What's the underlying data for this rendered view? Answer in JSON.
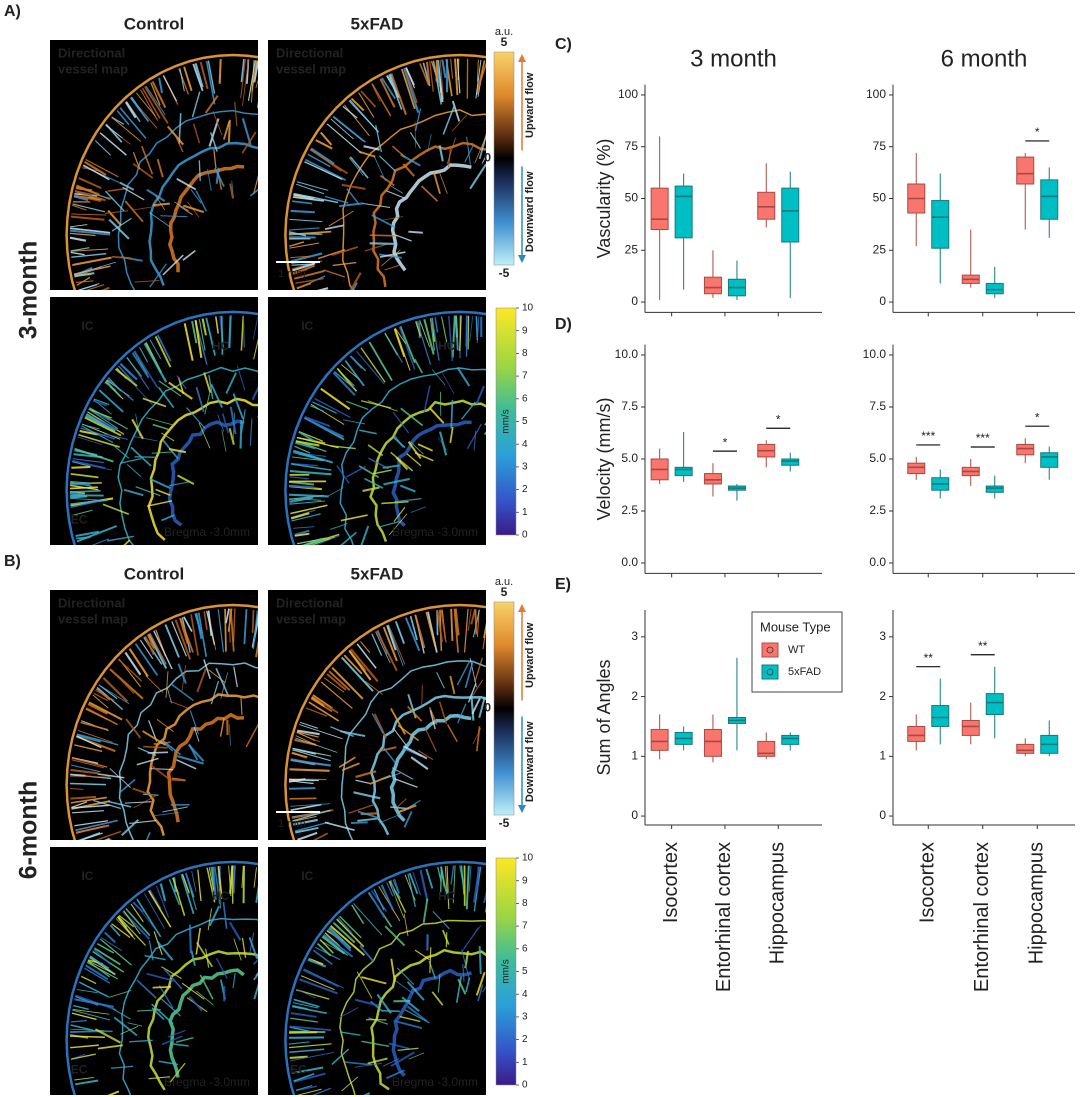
{
  "panel_a": {
    "label": "A)",
    "row_label": "3-month",
    "columns": [
      "Control",
      "5xFAD"
    ],
    "flow_images": [
      {
        "title": [
          "Directional",
          "vessel map"
        ]
      },
      {
        "title": [
          "Directional",
          "vessel map"
        ],
        "scale_bar": "1 mm"
      }
    ],
    "speed_images": [
      {
        "regions": [
          "IC",
          "HC",
          "EC"
        ],
        "bregma": "Bregma -3.0mm"
      },
      {
        "regions": [
          "IC",
          "HC"
        ],
        "bregma": "Bregma -3.0mm"
      }
    ],
    "flow_colorbar": {
      "unit": "a.u.",
      "lim": [
        -5,
        5
      ],
      "ticks": [
        5,
        0,
        -5
      ],
      "upper_label": "Upward flow",
      "lower_label": "Downward flow"
    },
    "speed_colorbar": {
      "unit": "mm/s",
      "lim": [
        0,
        10
      ],
      "ticks": [
        0,
        1,
        2,
        3,
        4,
        5,
        6,
        7,
        8,
        9,
        10
      ]
    }
  },
  "panel_b": {
    "label": "B)",
    "row_label": "6-month",
    "columns": [
      "Control",
      "5xFAD"
    ],
    "flow_images": [
      {
        "title": [
          "Directional",
          "vessel map"
        ]
      },
      {
        "title": [
          "Directional",
          "vessel map"
        ],
        "scale_bar": "1 mm"
      }
    ],
    "speed_images": [
      {
        "regions": [
          "IC",
          "HC",
          "EC"
        ],
        "bregma": "Bregma -3.0mm"
      },
      {
        "regions": [
          "IC",
          "HC",
          "EC"
        ],
        "bregma": "Bregma -3.0mm"
      }
    ],
    "flow_colorbar": {
      "unit": "a.u.",
      "lim": [
        -5,
        5
      ],
      "ticks": [
        5,
        0,
        -5
      ],
      "upper_label": "Upward flow",
      "lower_label": "Downward flow"
    },
    "speed_colorbar": {
      "unit": "mm/s",
      "lim": [
        0,
        10
      ],
      "ticks": [
        0,
        1,
        2,
        3,
        4,
        5,
        6,
        7,
        8,
        9,
        10
      ]
    }
  },
  "charts": {
    "type": "box",
    "columns": [
      "3 month",
      "6 month"
    ],
    "categories": [
      "Isocortex",
      "Entorhinal cortex",
      "Hippocampus"
    ],
    "legend_title": "Mouse Type",
    "series": [
      {
        "name": "WT",
        "color": "#f8766d"
      },
      {
        "name": "5xFAD",
        "color": "#00bfc4"
      }
    ],
    "rows": [
      {
        "label": "C)",
        "y_label": "Vascularity (%)",
        "ylim": [
          -5,
          105
        ],
        "yticks": [
          0,
          25,
          50,
          75,
          100
        ],
        "panels": [
          {
            "boxes": [
              [
                {
                  "min": 1,
                  "q1": 35,
                  "median": 40,
                  "q3": 55,
                  "max": 80
                },
                {
                  "min": 6,
                  "q1": 31,
                  "median": 51,
                  "q3": 56,
                  "max": 62
                }
              ],
              [
                {
                  "min": 2,
                  "q1": 4,
                  "median": 7,
                  "q3": 12,
                  "max": 25
                },
                {
                  "min": 1,
                  "q1": 3,
                  "median": 7,
                  "q3": 11,
                  "max": 20
                }
              ],
              [
                {
                  "min": 36,
                  "q1": 40,
                  "median": 46,
                  "q3": 53,
                  "max": 67
                },
                {
                  "min": 2,
                  "q1": 29,
                  "median": 44,
                  "q3": 55,
                  "max": 63
                }
              ]
            ],
            "significance": [
              null,
              null,
              null
            ]
          },
          {
            "boxes": [
              [
                {
                  "min": 27,
                  "q1": 43,
                  "median": 50,
                  "q3": 57,
                  "max": 72
                },
                {
                  "min": 9,
                  "q1": 26,
                  "median": 41,
                  "q3": 49,
                  "max": 62
                }
              ],
              [
                {
                  "min": 7,
                  "q1": 9,
                  "median": 11,
                  "q3": 13,
                  "max": 35
                },
                {
                  "min": 2,
                  "q1": 4,
                  "median": 6,
                  "q3": 9,
                  "max": 17
                }
              ],
              [
                {
                  "min": 35,
                  "q1": 57,
                  "median": 62,
                  "q3": 70,
                  "max": 72
                },
                {
                  "min": 31,
                  "q1": 40,
                  "median": 51,
                  "q3": 59,
                  "max": 65
                }
              ]
            ],
            "significance": [
              null,
              null,
              "*"
            ]
          }
        ]
      },
      {
        "label": "D)",
        "y_label": "Velocity (mm/s)",
        "ylim": [
          -0.5,
          10.5
        ],
        "yticks": [
          {
            "value": 0,
            "label": "0.0"
          },
          2.5,
          {
            "value": 5,
            "label": "5.0"
          },
          7.5,
          {
            "value": 10,
            "label": "10.0"
          }
        ],
        "panels": [
          {
            "boxes": [
              [
                {
                  "min": 3.8,
                  "q1": 4.0,
                  "median": 4.5,
                  "q3": 5.0,
                  "max": 5.5
                },
                {
                  "min": 3.9,
                  "q1": 4.2,
                  "median": 4.5,
                  "q3": 4.6,
                  "max": 6.3
                }
              ],
              [
                {
                  "min": 3.2,
                  "q1": 3.8,
                  "median": 4.0,
                  "q3": 4.3,
                  "max": 4.8
                },
                {
                  "min": 3.0,
                  "q1": 3.5,
                  "median": 3.6,
                  "q3": 3.7,
                  "max": 3.8
                }
              ],
              [
                {
                  "min": 4.6,
                  "q1": 5.1,
                  "median": 5.4,
                  "q3": 5.7,
                  "max": 5.9
                },
                {
                  "min": 4.4,
                  "q1": 4.7,
                  "median": 4.9,
                  "q3": 5.0,
                  "max": 5.3
                }
              ]
            ],
            "significance": [
              null,
              "*",
              "*"
            ]
          },
          {
            "boxes": [
              [
                {
                  "min": 4.0,
                  "q1": 4.3,
                  "median": 4.6,
                  "q3": 4.8,
                  "max": 5.1
                },
                {
                  "min": 3.1,
                  "q1": 3.5,
                  "median": 3.8,
                  "q3": 4.1,
                  "max": 4.5
                }
              ],
              [
                {
                  "min": 3.7,
                  "q1": 4.2,
                  "median": 4.4,
                  "q3": 4.6,
                  "max": 5.0
                },
                {
                  "min": 3.1,
                  "q1": 3.4,
                  "median": 3.6,
                  "q3": 3.7,
                  "max": 4.2
                }
              ],
              [
                {
                  "min": 4.8,
                  "q1": 5.2,
                  "median": 5.5,
                  "q3": 5.7,
                  "max": 6.0
                },
                {
                  "min": 4.0,
                  "q1": 4.6,
                  "median": 5.1,
                  "q3": 5.3,
                  "max": 5.6
                }
              ]
            ],
            "significance": [
              "***",
              "***",
              "*"
            ]
          }
        ]
      },
      {
        "label": "E)",
        "y_label": "Sum of Angles",
        "ylim": [
          -0.15,
          3.45
        ],
        "yticks": [
          0,
          1,
          2,
          3
        ],
        "panels": [
          {
            "boxes": [
              [
                {
                  "min": 0.95,
                  "q1": 1.1,
                  "median": 1.25,
                  "q3": 1.45,
                  "max": 1.7
                },
                {
                  "min": 1.1,
                  "q1": 1.2,
                  "median": 1.3,
                  "q3": 1.4,
                  "max": 1.5
                }
              ],
              [
                {
                  "min": 0.9,
                  "q1": 1.0,
                  "median": 1.25,
                  "q3": 1.45,
                  "max": 1.7
                },
                {
                  "min": 1.1,
                  "q1": 1.55,
                  "median": 1.6,
                  "q3": 1.65,
                  "max": 2.65
                }
              ],
              [
                {
                  "min": 0.95,
                  "q1": 1.0,
                  "median": 1.05,
                  "q3": 1.25,
                  "max": 1.4
                },
                {
                  "min": 1.1,
                  "q1": 1.2,
                  "median": 1.3,
                  "q3": 1.35,
                  "max": 1.4
                }
              ]
            ],
            "significance": [
              null,
              null,
              null
            ]
          },
          {
            "boxes": [
              [
                {
                  "min": 1.1,
                  "q1": 1.25,
                  "median": 1.35,
                  "q3": 1.5,
                  "max": 1.7
                },
                {
                  "min": 1.2,
                  "q1": 1.5,
                  "median": 1.65,
                  "q3": 1.85,
                  "max": 2.3
                }
              ],
              [
                {
                  "min": 1.2,
                  "q1": 1.35,
                  "median": 1.5,
                  "q3": 1.6,
                  "max": 1.9
                },
                {
                  "min": 1.3,
                  "q1": 1.7,
                  "median": 1.9,
                  "q3": 2.05,
                  "max": 2.5
                }
              ],
              [
                {
                  "min": 1.0,
                  "q1": 1.05,
                  "median": 1.1,
                  "q3": 1.2,
                  "max": 1.3
                },
                {
                  "min": 1.0,
                  "q1": 1.05,
                  "median": 1.2,
                  "q3": 1.35,
                  "max": 1.6
                }
              ]
            ],
            "significance": [
              "**",
              "**",
              null
            ]
          }
        ]
      }
    ]
  }
}
